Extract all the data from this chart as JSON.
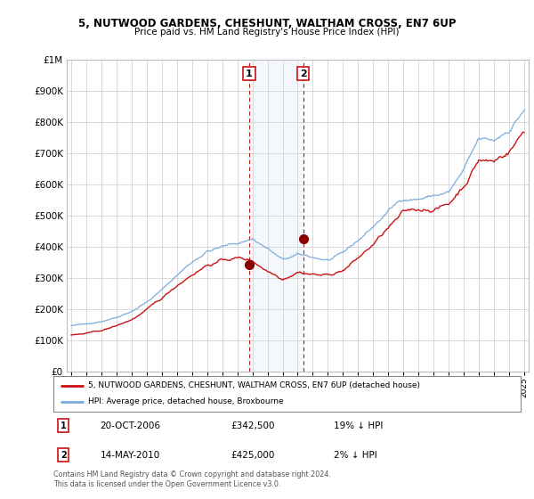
{
  "title": "5, NUTWOOD GARDENS, CHESHUNT, WALTHAM CROSS, EN7 6UP",
  "subtitle": "Price paid vs. HM Land Registry's House Price Index (HPI)",
  "legend_line1": "5, NUTWOOD GARDENS, CHESHUNT, WALTHAM CROSS, EN7 6UP (detached house)",
  "legend_line2": "HPI: Average price, detached house, Broxbourne",
  "annotation1_label": "1",
  "annotation1_date": "20-OCT-2006",
  "annotation1_price": "£342,500",
  "annotation1_hpi": "19% ↓ HPI",
  "annotation2_label": "2",
  "annotation2_date": "14-MAY-2010",
  "annotation2_price": "£425,000",
  "annotation2_hpi": "2% ↓ HPI",
  "footer": "Contains HM Land Registry data © Crown copyright and database right 2024.\nThis data is licensed under the Open Government Licence v3.0.",
  "hpi_color": "#7aaadd",
  "price_color": "#cc1111",
  "sale1_x": 2006.79,
  "sale1_y": 342500,
  "sale2_x": 2010.37,
  "sale2_y": 425000,
  "highlight_xmin": 2006.79,
  "highlight_xmax": 2010.37,
  "ylim": [
    0,
    1000000
  ],
  "xlim": [
    1994.7,
    2025.3
  ],
  "yticks": [
    0,
    100000,
    200000,
    300000,
    400000,
    500000,
    600000,
    700000,
    800000,
    900000,
    1000000
  ],
  "ytick_labels": [
    "£0",
    "£100K",
    "£200K",
    "£300K",
    "£400K",
    "£500K",
    "£600K",
    "£700K",
    "£800K",
    "£900K",
    "£1M"
  ]
}
